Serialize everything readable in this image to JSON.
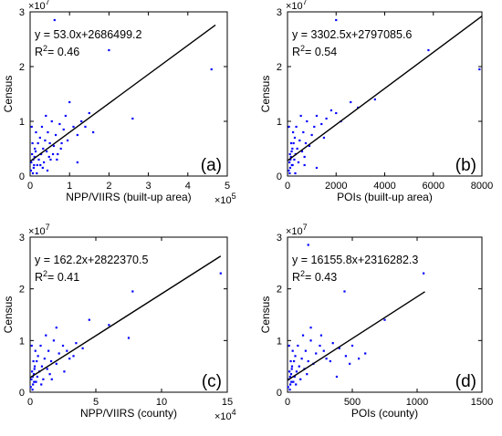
{
  "chart_data": [
    {
      "type": "scatter",
      "panel_label": "(a)",
      "xlabel": "NPP/VIIRS (built-up area)",
      "ylabel": "Census",
      "x_multiplier": "×10^5",
      "y_multiplier": "×10^7",
      "xlim": [
        0,
        500000
      ],
      "ylim": [
        0,
        30000000
      ],
      "x_ticks": [
        {
          "value": 0,
          "label": "0"
        },
        {
          "value": 100000,
          "label": "1"
        },
        {
          "value": 200000,
          "label": "2"
        },
        {
          "value": 300000,
          "label": "3"
        },
        {
          "value": 400000,
          "label": "4"
        },
        {
          "value": 500000,
          "label": "5"
        }
      ],
      "y_ticks": [
        {
          "value": 0,
          "label": "0"
        },
        {
          "value": 10000000,
          "label": "1"
        },
        {
          "value": 20000000,
          "label": "2"
        },
        {
          "value": 30000000,
          "label": "3"
        }
      ],
      "equation": "y = 53.0x+2686499.2",
      "r2_label": "R",
      "r2_value": "= 0.46",
      "fit": {
        "slope": 53.0,
        "intercept": 2686499.2,
        "x_range": [
          0,
          470000
        ]
      },
      "points": [
        [
          2000,
          1000000
        ],
        [
          3000,
          2500000
        ],
        [
          5000,
          4000000
        ],
        [
          8000,
          3000000
        ],
        [
          6000,
          6000000
        ],
        [
          10000,
          2000000
        ],
        [
          12000,
          5000000
        ],
        [
          15000,
          8000000
        ],
        [
          4000,
          9000000
        ],
        [
          7000,
          500000
        ],
        [
          9000,
          1500000
        ],
        [
          11000,
          3500000
        ],
        [
          14000,
          4500000
        ],
        [
          18000,
          2000000
        ],
        [
          20000,
          6000000
        ],
        [
          22000,
          3000000
        ],
        [
          25000,
          7000000
        ],
        [
          28000,
          4000000
        ],
        [
          30000,
          9000000
        ],
        [
          33000,
          5000000
        ],
        [
          35000,
          2500000
        ],
        [
          38000,
          6500000
        ],
        [
          40000,
          11000000
        ],
        [
          42000,
          4500000
        ],
        [
          45000,
          8000000
        ],
        [
          48000,
          3500000
        ],
        [
          50000,
          6000000
        ],
        [
          55000,
          10000000
        ],
        [
          60000,
          5500000
        ],
        [
          65000,
          7500000
        ],
        [
          70000,
          4000000
        ],
        [
          75000,
          9500000
        ],
        [
          80000,
          6000000
        ],
        [
          85000,
          8500000
        ],
        [
          90000,
          11000000
        ],
        [
          95000,
          6500000
        ],
        [
          100000,
          13500000
        ],
        [
          110000,
          9000000
        ],
        [
          120000,
          7500000
        ],
        [
          130000,
          10000000
        ],
        [
          140000,
          9000000
        ],
        [
          150000,
          11500000
        ],
        [
          160000,
          8000000
        ],
        [
          200000,
          23000000
        ],
        [
          62000,
          28500000
        ],
        [
          260000,
          10500000
        ],
        [
          460000,
          19500000
        ],
        [
          120000,
          2500000
        ],
        [
          32000,
          1500000
        ],
        [
          17000,
          500000
        ],
        [
          26000,
          2000000
        ],
        [
          44000,
          1000000
        ],
        [
          52000,
          3000000
        ],
        [
          58000,
          4000000
        ],
        [
          68000,
          3000000
        ],
        [
          78000,
          5000000
        ]
      ]
    },
    {
      "type": "scatter",
      "panel_label": "(b)",
      "xlabel": "POIs (built-up area)",
      "ylabel": "Census",
      "x_multiplier": "",
      "y_multiplier": "×10^7",
      "xlim": [
        0,
        8000
      ],
      "ylim": [
        0,
        30000000
      ],
      "x_ticks": [
        {
          "value": 0,
          "label": "0"
        },
        {
          "value": 2000,
          "label": "2000"
        },
        {
          "value": 4000,
          "label": "4000"
        },
        {
          "value": 6000,
          "label": "6000"
        },
        {
          "value": 8000,
          "label": "8000"
        }
      ],
      "y_ticks": [
        {
          "value": 0,
          "label": "0"
        },
        {
          "value": 10000000,
          "label": "1"
        },
        {
          "value": 20000000,
          "label": "2"
        },
        {
          "value": 30000000,
          "label": "3"
        }
      ],
      "equation": "y = 3302.5x+2797085.6",
      "r2_label": "R",
      "r2_value": "= 0.54",
      "fit": {
        "slope": 3302.5,
        "intercept": 2797085.6,
        "x_range": [
          0,
          8000
        ]
      },
      "points": [
        [
          50,
          1000000
        ],
        [
          80,
          2500000
        ],
        [
          100,
          4000000
        ],
        [
          120,
          3000000
        ],
        [
          150,
          6000000
        ],
        [
          180,
          2000000
        ],
        [
          200,
          5000000
        ],
        [
          230,
          8000000
        ],
        [
          60,
          9000000
        ],
        [
          90,
          500000
        ],
        [
          110,
          1500000
        ],
        [
          140,
          3500000
        ],
        [
          170,
          4500000
        ],
        [
          210,
          2000000
        ],
        [
          250,
          6000000
        ],
        [
          280,
          3000000
        ],
        [
          300,
          7000000
        ],
        [
          330,
          4000000
        ],
        [
          360,
          9000000
        ],
        [
          400,
          5000000
        ],
        [
          450,
          2500000
        ],
        [
          500,
          6500000
        ],
        [
          550,
          11000000
        ],
        [
          600,
          4500000
        ],
        [
          650,
          8000000
        ],
        [
          700,
          3500000
        ],
        [
          750,
          6000000
        ],
        [
          800,
          10000000
        ],
        [
          900,
          5500000
        ],
        [
          1000,
          7500000
        ],
        [
          1100,
          9000000
        ],
        [
          1200,
          11000000
        ],
        [
          1400,
          9500000
        ],
        [
          1600,
          10500000
        ],
        [
          1800,
          12000000
        ],
        [
          2000,
          11500000
        ],
        [
          2200,
          10000000
        ],
        [
          2600,
          13500000
        ],
        [
          2900,
          12500000
        ],
        [
          3600,
          14000000
        ],
        [
          5800,
          23000000
        ],
        [
          7900,
          19500000
        ],
        [
          2000,
          28500000
        ],
        [
          1200,
          1500000
        ],
        [
          320,
          500000
        ],
        [
          700,
          2000000
        ],
        [
          1500,
          7000000
        ]
      ]
    },
    {
      "type": "scatter",
      "panel_label": "(c)",
      "xlabel": "NPP/VIIRS (county)",
      "ylabel": "Census",
      "x_multiplier": "×10^4",
      "y_multiplier": "×10^7",
      "xlim": [
        0,
        150000
      ],
      "ylim": [
        0,
        30000000
      ],
      "x_ticks": [
        {
          "value": 0,
          "label": "0"
        },
        {
          "value": 50000,
          "label": "5"
        },
        {
          "value": 100000,
          "label": "10"
        },
        {
          "value": 150000,
          "label": "15"
        }
      ],
      "y_ticks": [
        {
          "value": 0,
          "label": "0"
        },
        {
          "value": 10000000,
          "label": "1"
        },
        {
          "value": 20000000,
          "label": "2"
        },
        {
          "value": 30000000,
          "label": "3"
        }
      ],
      "equation": "y = 162.2x+2822370.5",
      "r2_label": "R",
      "r2_value": "= 0.41",
      "fit": {
        "slope": 162.2,
        "intercept": 2822370.5,
        "x_range": [
          0,
          145000
        ]
      },
      "points": [
        [
          500,
          1000000
        ],
        [
          1000,
          2500000
        ],
        [
          1500,
          4000000
        ],
        [
          2000,
          3000000
        ],
        [
          2500,
          6000000
        ],
        [
          3000,
          2000000
        ],
        [
          3500,
          5000000
        ],
        [
          4000,
          8000000
        ],
        [
          1200,
          9000000
        ],
        [
          1800,
          500000
        ],
        [
          2200,
          1500000
        ],
        [
          2800,
          3500000
        ],
        [
          3300,
          4500000
        ],
        [
          4500,
          2000000
        ],
        [
          5000,
          6000000
        ],
        [
          5500,
          3000000
        ],
        [
          6000,
          7000000
        ],
        [
          7000,
          4000000
        ],
        [
          8000,
          9000000
        ],
        [
          9000,
          5000000
        ],
        [
          10000,
          2500000
        ],
        [
          11000,
          6500000
        ],
        [
          12000,
          11000000
        ],
        [
          13000,
          4500000
        ],
        [
          14000,
          8000000
        ],
        [
          15000,
          3500000
        ],
        [
          16000,
          6000000
        ],
        [
          18000,
          10000000
        ],
        [
          20000,
          5500000
        ],
        [
          22000,
          7500000
        ],
        [
          25000,
          9000000
        ],
        [
          28000,
          8000000
        ],
        [
          30000,
          6500000
        ],
        [
          35000,
          9500000
        ],
        [
          40000,
          8500000
        ],
        [
          45000,
          14000000
        ],
        [
          60000,
          13000000
        ],
        [
          75000,
          10500000
        ],
        [
          78000,
          19500000
        ],
        [
          145000,
          23000000
        ],
        [
          20000,
          12500000
        ],
        [
          8500,
          1500000
        ],
        [
          16500,
          2500000
        ],
        [
          33000,
          7000000
        ],
        [
          26000,
          4000000
        ]
      ]
    },
    {
      "type": "scatter",
      "panel_label": "(d)",
      "xlabel": "POIs (county)",
      "ylabel": "Census",
      "x_multiplier": "",
      "y_multiplier": "×10^7",
      "xlim": [
        0,
        1500
      ],
      "ylim": [
        0,
        30000000
      ],
      "x_ticks": [
        {
          "value": 0,
          "label": "0"
        },
        {
          "value": 500,
          "label": "500"
        },
        {
          "value": 1000,
          "label": "1000"
        },
        {
          "value": 1500,
          "label": "1500"
        }
      ],
      "y_ticks": [
        {
          "value": 0,
          "label": "0"
        },
        {
          "value": 10000000,
          "label": "1"
        },
        {
          "value": 20000000,
          "label": "2"
        },
        {
          "value": 30000000,
          "label": "3"
        }
      ],
      "equation": "y = 16155.8x+2316282.3",
      "r2_label": "R",
      "r2_value": "= 0.43",
      "fit": {
        "slope": 16155.8,
        "intercept": 2316282.3,
        "x_range": [
          0,
          1060
        ]
      },
      "points": [
        [
          5,
          1000000
        ],
        [
          10,
          2500000
        ],
        [
          15,
          4000000
        ],
        [
          20,
          3000000
        ],
        [
          25,
          6000000
        ],
        [
          30,
          2000000
        ],
        [
          35,
          5000000
        ],
        [
          40,
          8000000
        ],
        [
          12,
          9000000
        ],
        [
          18,
          500000
        ],
        [
          22,
          1500000
        ],
        [
          28,
          3500000
        ],
        [
          33,
          4500000
        ],
        [
          45,
          2000000
        ],
        [
          50,
          6000000
        ],
        [
          55,
          3000000
        ],
        [
          60,
          7000000
        ],
        [
          70,
          4000000
        ],
        [
          80,
          9000000
        ],
        [
          90,
          5000000
        ],
        [
          100,
          2500000
        ],
        [
          110,
          6500000
        ],
        [
          120,
          11000000
        ],
        [
          130,
          4500000
        ],
        [
          140,
          8000000
        ],
        [
          150,
          3500000
        ],
        [
          160,
          6000000
        ],
        [
          180,
          10000000
        ],
        [
          200,
          5500000
        ],
        [
          220,
          7500000
        ],
        [
          250,
          9000000
        ],
        [
          280,
          8000000
        ],
        [
          300,
          6500000
        ],
        [
          350,
          9500000
        ],
        [
          400,
          8500000
        ],
        [
          450,
          7000000
        ],
        [
          500,
          9000000
        ],
        [
          550,
          6500000
        ],
        [
          600,
          7500000
        ],
        [
          180,
          12500000
        ],
        [
          160,
          28500000
        ],
        [
          440,
          19500000
        ],
        [
          750,
          14000000
        ],
        [
          1050,
          23000000
        ],
        [
          260,
          11000000
        ],
        [
          330,
          6000000
        ],
        [
          480,
          5500000
        ],
        [
          380,
          3000000
        ],
        [
          65,
          1500000
        ]
      ]
    }
  ]
}
